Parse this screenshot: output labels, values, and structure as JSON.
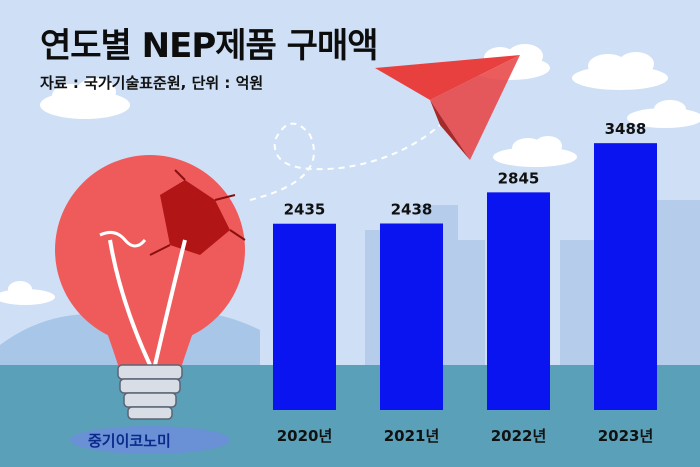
{
  "title": "연도별 NEP제품 구매액",
  "source_note": "자료 :  국가기술표준원, 단위 : 억원",
  "watermark": "중기이코노미",
  "colors": {
    "sky": "#cfe0f6",
    "ground": "#5aa0b8",
    "bar": "#0a14f0",
    "bulb": "#ef5b5b",
    "plane": "#e8403f"
  },
  "chart_data": {
    "type": "bar",
    "categories": [
      "2020년",
      "2021년",
      "2022년",
      "2023년"
    ],
    "values": [
      2435,
      2438,
      2845,
      3488
    ],
    "ylim": [
      0,
      4000
    ],
    "grid": false,
    "title": "연도별 NEP제품 구매액",
    "xlabel": "",
    "ylabel": ""
  }
}
